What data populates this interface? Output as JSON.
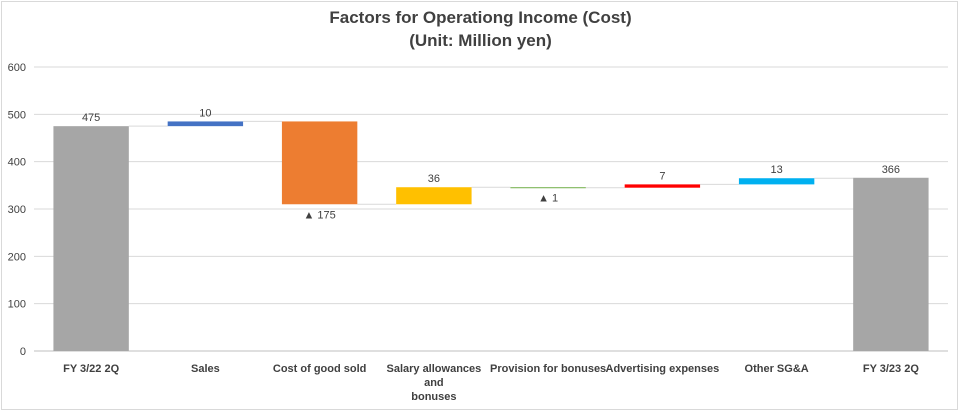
{
  "chart_data": {
    "type": "bar",
    "title": "Factors for Operationg Income (Cost)",
    "subtitle": "(Unit: Million yen)",
    "ylim": [
      0,
      600
    ],
    "yticks": [
      "0",
      "100",
      "200",
      "300",
      "400",
      "500",
      "600"
    ],
    "grid": true,
    "categories": [
      [
        "FY 3/22 2Q"
      ],
      [
        "Sales"
      ],
      [
        "Cost of good sold"
      ],
      [
        "Salary allowances",
        "and",
        "bonuses"
      ],
      [
        "Provision for bonuses"
      ],
      [
        "Advertising expenses"
      ],
      [
        "Other SG&A"
      ],
      [
        "FY 3/23 2Q"
      ]
    ],
    "bars": [
      {
        "base": 0,
        "top": 475,
        "label": "475",
        "negative": false,
        "color": "#a6a6a6"
      },
      {
        "base": 475,
        "top": 485,
        "label": "10",
        "negative": false,
        "color": "#4472c4"
      },
      {
        "base": 310,
        "top": 485,
        "label": "▲ 175",
        "negative": true,
        "color": "#ed7d31"
      },
      {
        "base": 310,
        "top": 346,
        "label": "36",
        "negative": false,
        "color": "#ffc000"
      },
      {
        "base": 345,
        "top": 346,
        "label": "▲ 1",
        "negative": true,
        "color": "#70ad47"
      },
      {
        "base": 345,
        "top": 352,
        "label": "7",
        "negative": false,
        "color": "#ff0000"
      },
      {
        "base": 352,
        "top": 365,
        "label": "13",
        "negative": false,
        "color": "#00b0f0"
      },
      {
        "base": 0,
        "top": 366,
        "label": "366",
        "negative": false,
        "color": "#a6a6a6"
      }
    ]
  }
}
